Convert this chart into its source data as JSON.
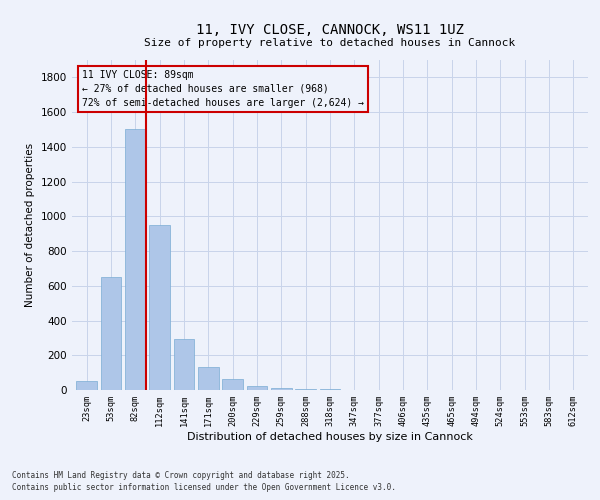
{
  "title": "11, IVY CLOSE, CANNOCK, WS11 1UZ",
  "subtitle": "Size of property relative to detached houses in Cannock",
  "xlabel": "Distribution of detached houses by size in Cannock",
  "ylabel": "Number of detached properties",
  "bar_labels": [
    "23sqm",
    "53sqm",
    "82sqm",
    "112sqm",
    "141sqm",
    "171sqm",
    "200sqm",
    "229sqm",
    "259sqm",
    "288sqm",
    "318sqm",
    "347sqm",
    "377sqm",
    "406sqm",
    "435sqm",
    "465sqm",
    "494sqm",
    "524sqm",
    "553sqm",
    "583sqm",
    "612sqm"
  ],
  "bar_values": [
    50,
    650,
    1500,
    950,
    295,
    135,
    65,
    25,
    10,
    5,
    3,
    2,
    1,
    1,
    0,
    0,
    0,
    0,
    0,
    0,
    0
  ],
  "bar_color": "#aec6e8",
  "bar_edge_color": "#7aadd4",
  "ylim": [
    0,
    1900
  ],
  "yticks": [
    0,
    200,
    400,
    600,
    800,
    1000,
    1200,
    1400,
    1600,
    1800
  ],
  "vline_x_index": 2,
  "vline_color": "#cc0000",
  "annotation_line1": "11 IVY CLOSE: 89sqm",
  "annotation_line2": "← 27% of detached houses are smaller (968)",
  "annotation_line3": "72% of semi-detached houses are larger (2,624) →",
  "annotation_box_color": "#cc0000",
  "bg_color": "#eef2fb",
  "grid_color": "#c8d4ea",
  "footnote1": "Contains HM Land Registry data © Crown copyright and database right 2025.",
  "footnote2": "Contains public sector information licensed under the Open Government Licence v3.0."
}
